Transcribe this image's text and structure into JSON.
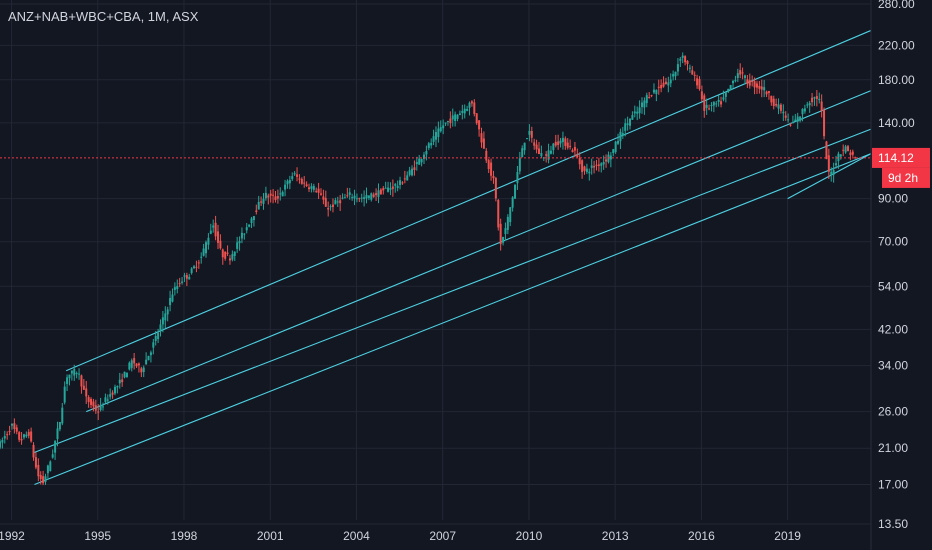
{
  "header": {
    "title": "ANZ+NAB+WBC+CBA, 1M, ASX"
  },
  "colors": {
    "background": "#131722",
    "grid": "#232733",
    "text": "#d1d4dc",
    "up": "#26a69a",
    "down": "#ef5350",
    "channel": "#4dd0e1",
    "tag": "#f23645"
  },
  "price": {
    "last_label": "114.12",
    "countdown": "9d 2h",
    "last_value": 114.12
  },
  "chart_data": {
    "type": "candlestick",
    "title": "ANZ+NAB+WBC+CBA, 1M, ASX",
    "y_scale": "log",
    "ylim": [
      13.5,
      280
    ],
    "xlim": [
      1991.6,
      2021.9
    ],
    "y_ticks": [
      280,
      220,
      180,
      140,
      114.12,
      90,
      70,
      54,
      42,
      34,
      26,
      21,
      17,
      13.5
    ],
    "y_tick_labels": [
      "280.00",
      "220.00",
      "180.00",
      "140.00",
      "114.12",
      "90.00",
      "70.00",
      "54.00",
      "42.00",
      "34.00",
      "26.00",
      "21.00",
      "17.00",
      "13.50"
    ],
    "x_ticks": [
      1992,
      1995,
      1998,
      2001,
      2004,
      2007,
      2010,
      2013,
      2016,
      2019
    ],
    "x_tick_labels": [
      "1992",
      "1995",
      "1998",
      "2001",
      "2004",
      "2007",
      "2010",
      "2013",
      "2016",
      "2019"
    ],
    "series": [
      {
        "trend": [
          [
            1991.6,
            21.5
          ],
          [
            1992.0,
            24
          ],
          [
            1992.3,
            22
          ],
          [
            1992.6,
            23
          ],
          [
            1992.9,
            18
          ],
          [
            1993.1,
            17.2
          ],
          [
            1993.4,
            20
          ],
          [
            1993.7,
            25
          ],
          [
            1993.9,
            32
          ],
          [
            1994.3,
            33
          ],
          [
            1994.6,
            28
          ],
          [
            1995.0,
            26
          ],
          [
            1995.3,
            28
          ],
          [
            1995.8,
            31
          ],
          [
            1996.2,
            35
          ],
          [
            1996.5,
            33
          ],
          [
            1996.9,
            38
          ],
          [
            1997.3,
            45
          ],
          [
            1997.6,
            52
          ],
          [
            1997.9,
            56
          ],
          [
            1998.2,
            58
          ],
          [
            1998.6,
            64
          ],
          [
            1999.0,
            78
          ],
          [
            1999.3,
            65
          ],
          [
            1999.6,
            64
          ],
          [
            2000.0,
            72
          ],
          [
            2000.4,
            82
          ],
          [
            2000.8,
            92
          ],
          [
            2001.2,
            90
          ],
          [
            2001.5,
            96
          ],
          [
            2001.8,
            104
          ],
          [
            2002.2,
            98
          ],
          [
            2002.6,
            95
          ],
          [
            2003.0,
            85
          ],
          [
            2003.4,
            89
          ],
          [
            2003.8,
            92
          ],
          [
            2004.2,
            90
          ],
          [
            2004.6,
            92
          ],
          [
            2005.0,
            95
          ],
          [
            2005.5,
            98
          ],
          [
            2006.0,
            108
          ],
          [
            2006.5,
            122
          ],
          [
            2007.0,
            138
          ],
          [
            2007.4,
            145
          ],
          [
            2007.8,
            153
          ],
          [
            2008.0,
            158
          ],
          [
            2008.2,
            140
          ],
          [
            2008.5,
            115
          ],
          [
            2008.8,
            98
          ],
          [
            2009.0,
            68
          ],
          [
            2009.2,
            76
          ],
          [
            2009.5,
            96
          ],
          [
            2009.8,
            125
          ],
          [
            2010.0,
            132
          ],
          [
            2010.3,
            118
          ],
          [
            2010.6,
            115
          ],
          [
            2010.9,
            125
          ],
          [
            2011.2,
            126
          ],
          [
            2011.6,
            118
          ],
          [
            2011.9,
            105
          ],
          [
            2012.2,
            108
          ],
          [
            2012.6,
            112
          ],
          [
            2012.9,
            118
          ],
          [
            2013.2,
            132
          ],
          [
            2013.5,
            143
          ],
          [
            2013.8,
            150
          ],
          [
            2014.1,
            163
          ],
          [
            2014.5,
            172
          ],
          [
            2014.9,
            178
          ],
          [
            2015.1,
            190
          ],
          [
            2015.3,
            210
          ],
          [
            2015.6,
            190
          ],
          [
            2015.9,
            175
          ],
          [
            2016.1,
            152
          ],
          [
            2016.4,
            155
          ],
          [
            2016.7,
            158
          ],
          [
            2017.0,
            173
          ],
          [
            2017.3,
            190
          ],
          [
            2017.6,
            178
          ],
          [
            2017.9,
            174
          ],
          [
            2018.2,
            170
          ],
          [
            2018.5,
            158
          ],
          [
            2018.8,
            150
          ],
          [
            2019.1,
            138
          ],
          [
            2019.4,
            145
          ],
          [
            2019.7,
            158
          ],
          [
            2020.0,
            163
          ],
          [
            2020.15,
            158
          ],
          [
            2020.3,
            120
          ],
          [
            2020.45,
            102
          ],
          [
            2020.6,
            108
          ],
          [
            2020.8,
            118
          ],
          [
            2021.0,
            121
          ],
          [
            2021.2,
            117
          ],
          [
            2021.35,
            114.12
          ]
        ]
      }
    ],
    "channel_lines": [
      [
        [
          1993.9,
          33
        ],
        [
          2021.9,
          240
        ]
      ],
      [
        [
          1994.6,
          26
        ],
        [
          2021.9,
          169
        ]
      ],
      [
        [
          1992.8,
          20.5
        ],
        [
          2021.9,
          135
        ]
      ],
      [
        [
          1992.8,
          17
        ],
        [
          2021.9,
          117
        ]
      ],
      [
        [
          2019.0,
          90
        ],
        [
          2021.9,
          117
        ]
      ]
    ]
  }
}
